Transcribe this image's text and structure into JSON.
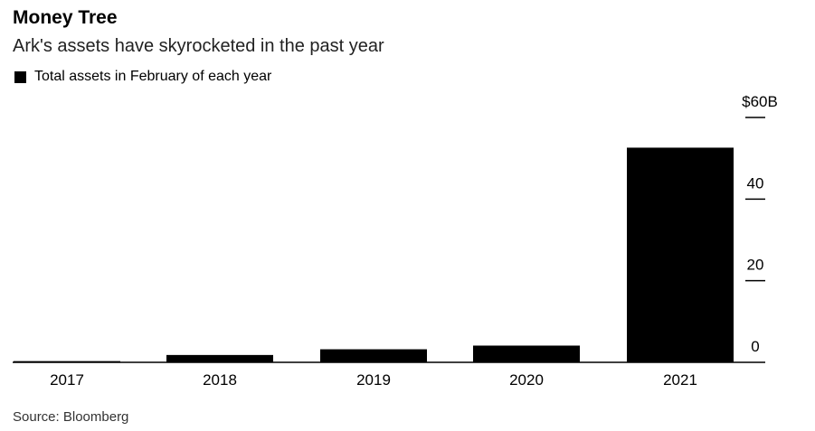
{
  "chart_data": {
    "type": "bar",
    "title": "Money Tree",
    "subtitle": "Ark's assets have skyrocketed in the past year",
    "legend": "Total assets in February of each year",
    "source": "Source: Bloomberg",
    "categories": [
      "2017",
      "2018",
      "2019",
      "2020",
      "2021"
    ],
    "values": [
      0.3,
      1.8,
      3.2,
      4.1,
      52.6
    ],
    "bar_color": "#000000",
    "ylim": [
      0,
      60
    ],
    "y_ticks": [
      {
        "value": 0,
        "label": "0"
      },
      {
        "value": 20,
        "label": "20"
      },
      {
        "value": 40,
        "label": "40"
      },
      {
        "value": 60,
        "label": "$60B"
      }
    ],
    "axis_side": "right",
    "grid": false,
    "xlabel": "",
    "ylabel": ""
  }
}
